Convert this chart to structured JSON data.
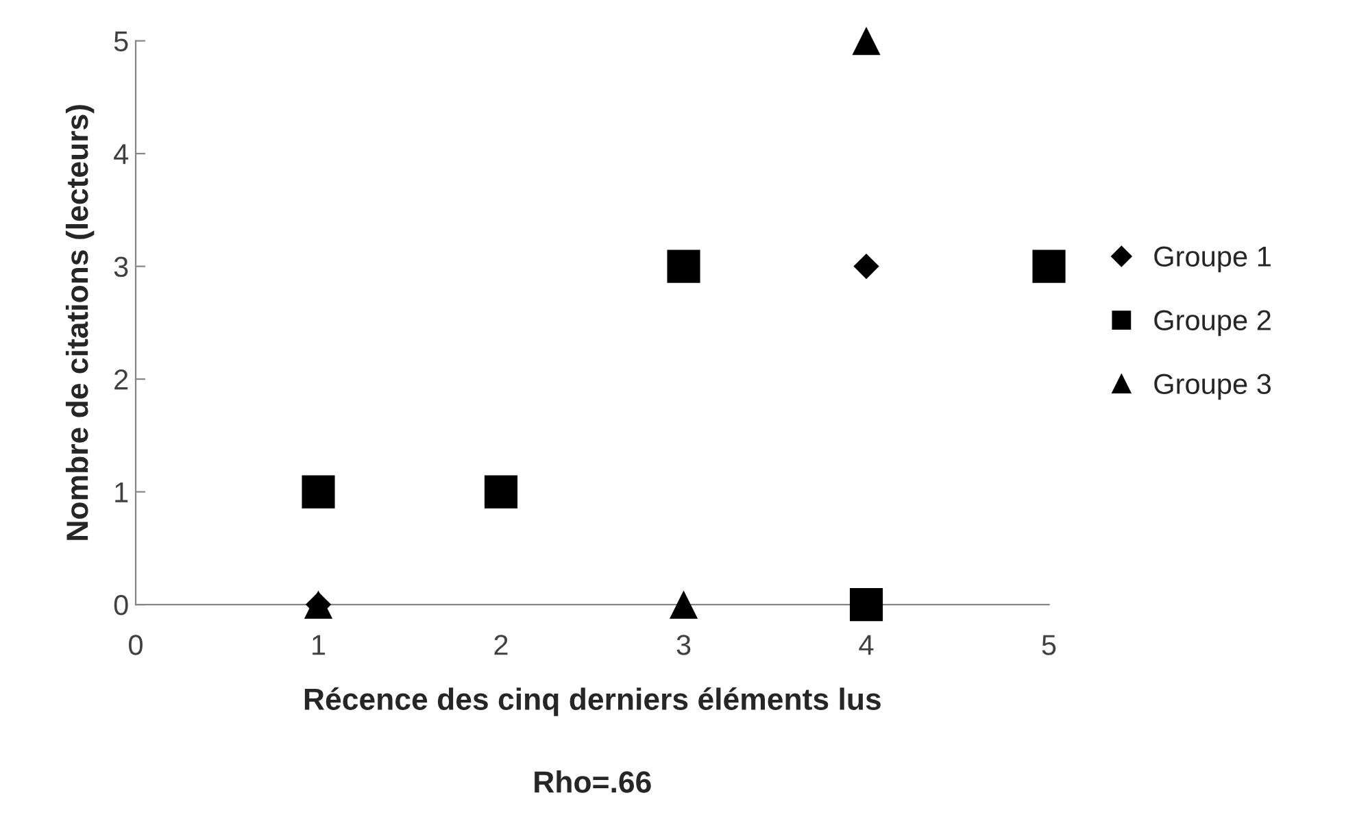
{
  "chart_data": {
    "type": "scatter",
    "xlabel": "Récence des cinq derniers éléments lus",
    "ylabel": "Nombre de citations (lecteurs)",
    "annotations": [
      "Rho=.66"
    ],
    "xlim": [
      0,
      5
    ],
    "ylim": [
      0,
      5
    ],
    "xticks": [
      0,
      1,
      2,
      3,
      4,
      5
    ],
    "yticks": [
      0,
      1,
      2,
      3,
      4,
      5
    ],
    "grid": false,
    "legend": "right",
    "series": [
      {
        "name": "Groupe 1",
        "color": "#000000",
        "marker": "diamond",
        "x": [
          1,
          4
        ],
        "values": [
          0,
          3
        ]
      },
      {
        "name": "Groupe 2",
        "color": "#000000",
        "marker": "square",
        "x": [
          1,
          2,
          3,
          4,
          5
        ],
        "values": [
          1,
          1,
          3,
          0,
          3
        ]
      },
      {
        "name": "Groupe 3",
        "color": "#000000",
        "marker": "triangle",
        "x": [
          1,
          3,
          4
        ],
        "values": [
          0,
          0,
          5
        ]
      }
    ]
  }
}
